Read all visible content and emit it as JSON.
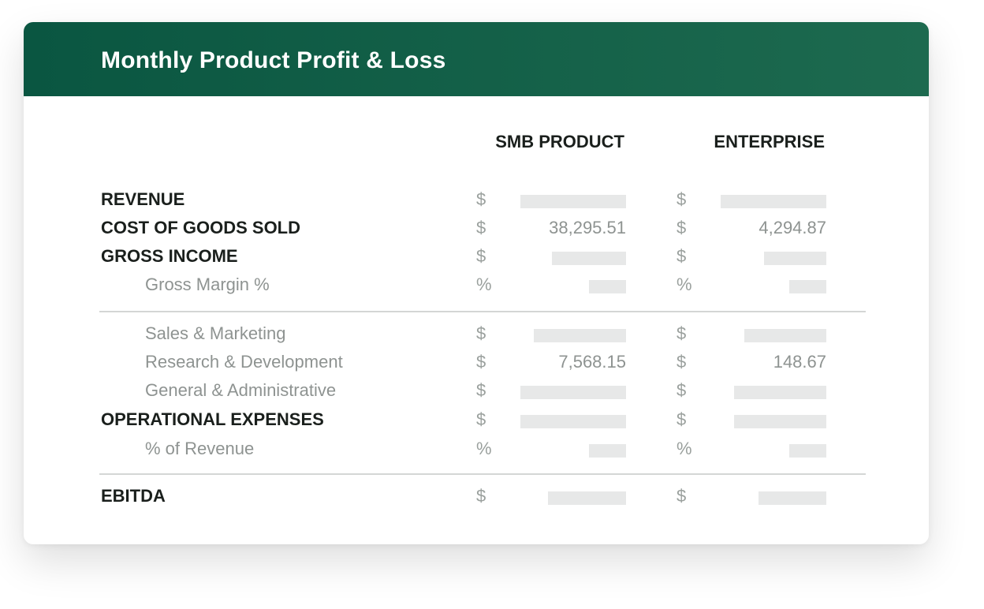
{
  "title": "Monthly Product Profit & Loss",
  "columns": {
    "smb": "SMB PRODUCT",
    "enterprise": "ENTERPRISE"
  },
  "rows": {
    "revenue": {
      "label": "REVENUE",
      "symbol_a": "$",
      "symbol_b": "$",
      "value_a": "",
      "value_b": ""
    },
    "cogs": {
      "label": "COST OF GOODS SOLD",
      "symbol_a": "$",
      "symbol_b": "$",
      "value_a": "38,295.51",
      "value_b": "4,294.87"
    },
    "gross_income": {
      "label": "GROSS INCOME",
      "symbol_a": "$",
      "symbol_b": "$",
      "value_a": "",
      "value_b": ""
    },
    "gross_margin": {
      "label": "Gross Margin %",
      "symbol_a": "%",
      "symbol_b": "%",
      "value_a": "",
      "value_b": ""
    },
    "sales_mkt": {
      "label": "Sales & Marketing",
      "symbol_a": "$",
      "symbol_b": "$",
      "value_a": "",
      "value_b": ""
    },
    "rnd": {
      "label": "Research & Development",
      "symbol_a": "$",
      "symbol_b": "$",
      "value_a": "7,568.15",
      "value_b": "148.67"
    },
    "gna": {
      "label": "General & Administrative",
      "symbol_a": "$",
      "symbol_b": "$",
      "value_a": "",
      "value_b": ""
    },
    "opex": {
      "label": "OPERATIONAL EXPENSES",
      "symbol_a": "$",
      "symbol_b": "$",
      "value_a": "",
      "value_b": ""
    },
    "pct_revenue": {
      "label": "% of Revenue",
      "symbol_a": "%",
      "symbol_b": "%",
      "value_a": "",
      "value_b": ""
    },
    "ebitda": {
      "label": "EBITDA",
      "symbol_a": "$",
      "symbol_b": "$",
      "value_a": "",
      "value_b": ""
    }
  },
  "colors": {
    "header_start": "#0a5641",
    "header_end": "#1d6a4f",
    "placeholder": "#e7e8e8"
  }
}
